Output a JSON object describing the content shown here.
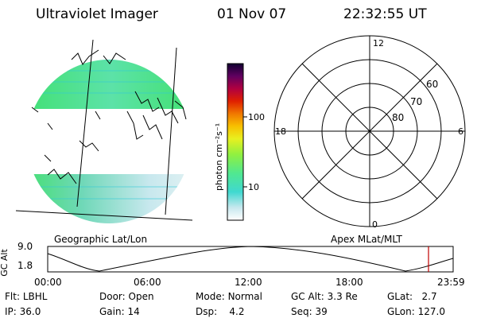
{
  "header": {
    "instrument": "Ultraviolet Imager",
    "date": "01 Nov 07",
    "time": "22:32:55 UT"
  },
  "left_panel_label": "Geographic Lat/Lon",
  "right_panel_label": "Apex MLat/MLT",
  "colorbar": {
    "unit_label": "photon cm⁻²s⁻¹",
    "ticks": [
      "100",
      "10"
    ]
  },
  "polar_plot": {
    "mlt_labels": {
      "top": "12",
      "left": "18",
      "right": "6",
      "bottom": "0"
    },
    "lat_labels": [
      "60",
      "70",
      "80"
    ]
  },
  "orbit": {
    "axis_label": "GC Alt",
    "y_ticks": [
      "9.0",
      "1.8"
    ],
    "x_ticks": [
      "00:00",
      "06:00",
      "12:00",
      "18:00",
      "23:59"
    ]
  },
  "status": {
    "row1": [
      {
        "label": "Flt:",
        "value": "LBHL"
      },
      {
        "label": "Door:",
        "value": "Open"
      },
      {
        "label": "Mode:",
        "value": "Normal"
      },
      {
        "label": "GC Alt:",
        "value": "3.3 Re"
      },
      {
        "label": "GLat:",
        "value": "2.7"
      }
    ],
    "row2": [
      {
        "label": "IP:",
        "value": "36.0"
      },
      {
        "label": "Gain:",
        "value": "14"
      },
      {
        "label": "Dsp:",
        "value": "4.2"
      },
      {
        "label": "Seq:",
        "value": "39"
      },
      {
        "label": "GLon:",
        "value": "127.0"
      }
    ]
  },
  "colors": {
    "colorbar_stops": [
      "#ffffff",
      "#c8e8ee",
      "#40d8d0",
      "#50e890",
      "#90f040",
      "#e8f020",
      "#f8c000",
      "#f07800",
      "#e02000",
      "#b00040",
      "#600060",
      "#100030"
    ],
    "aurora_green": "#3fe06a",
    "aurora_cyan": "#7fd8cf",
    "orbit_marker": "#c00000"
  }
}
